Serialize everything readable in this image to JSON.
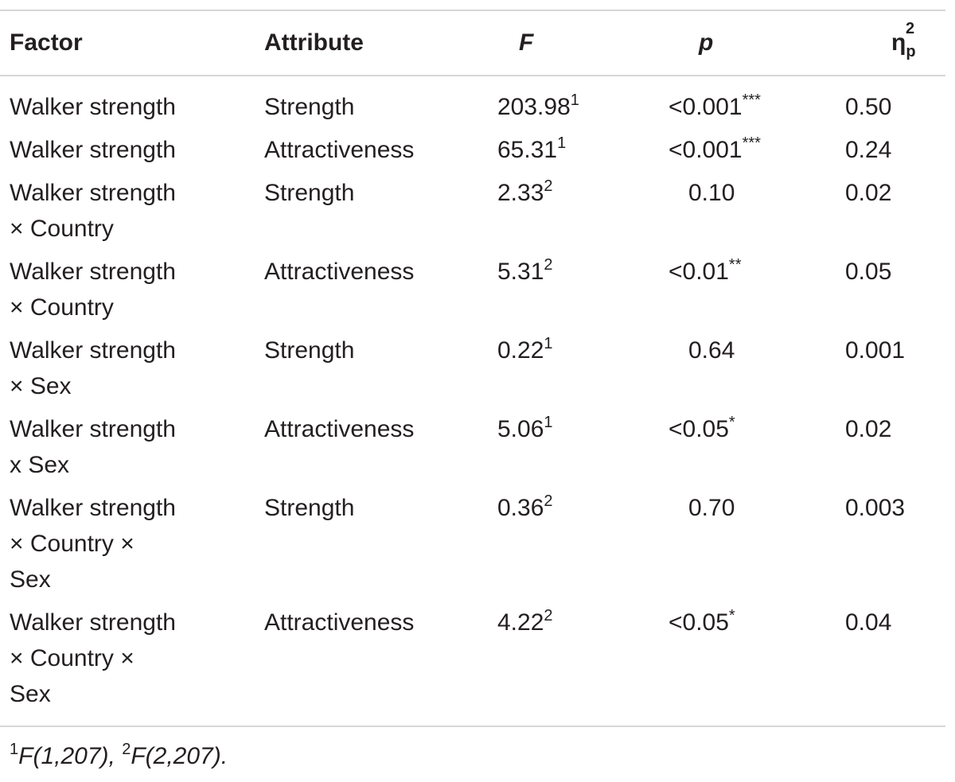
{
  "table": {
    "headers": {
      "factor": "Factor",
      "attribute": "Attribute",
      "f": "F",
      "p": "p",
      "eta_symbol": "η",
      "eta_sub": "p",
      "eta_sup": "2"
    },
    "rows": [
      {
        "factor": [
          "Walker strength"
        ],
        "attribute": "Strength",
        "f": "203.98",
        "f_sup": "1",
        "p": "<0.001",
        "p_stars": "***",
        "eta": "0.50"
      },
      {
        "factor": [
          "Walker strength"
        ],
        "attribute": "Attractiveness",
        "f": "65.31",
        "f_sup": "1",
        "p": "<0.001",
        "p_stars": "***",
        "eta": "0.24"
      },
      {
        "factor": [
          "Walker strength",
          "× Country"
        ],
        "attribute": "Strength",
        "f": "2.33",
        "f_sup": "2",
        "p": "0.10",
        "p_stars": "",
        "eta": "0.02"
      },
      {
        "factor": [
          "Walker strength",
          "× Country"
        ],
        "attribute": "Attractiveness",
        "f": "5.31",
        "f_sup": "2",
        "p": "<0.01",
        "p_stars": "**",
        "eta": "0.05"
      },
      {
        "factor": [
          "Walker strength",
          "× Sex"
        ],
        "attribute": "Strength",
        "f": "0.22",
        "f_sup": "1",
        "p": "0.64",
        "p_stars": "",
        "eta": "0.001"
      },
      {
        "factor": [
          "Walker strength",
          "x Sex"
        ],
        "attribute": "Attractiveness",
        "f": "5.06",
        "f_sup": "1",
        "p": "<0.05",
        "p_stars": "*",
        "eta": "0.02"
      },
      {
        "factor": [
          "Walker strength",
          "× Country ×",
          "Sex"
        ],
        "attribute": "Strength",
        "f": "0.36",
        "f_sup": "2",
        "p": "0.70",
        "p_stars": "",
        "eta": "0.003"
      },
      {
        "factor": [
          "Walker strength",
          "× Country ×",
          "Sex"
        ],
        "attribute": "Attractiveness",
        "f": "4.22",
        "f_sup": "2",
        "p": "<0.05",
        "p_stars": "*",
        "eta": "0.04"
      }
    ]
  },
  "footnote": {
    "sup1": "1",
    "text1": "F(1,207), ",
    "sup2": "2",
    "text2": "F(2,207)."
  }
}
